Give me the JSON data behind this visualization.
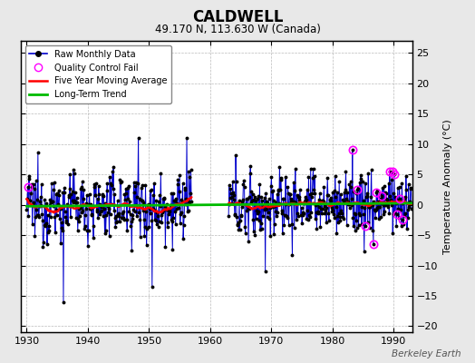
{
  "title": "CALDWELL",
  "subtitle": "49.170 N, 113.630 W (Canada)",
  "ylabel_right": "Temperature Anomaly (°C)",
  "xlim": [
    1929,
    1993
  ],
  "ylim": [
    -21,
    27
  ],
  "yticks": [
    -20,
    -15,
    -10,
    -5,
    0,
    5,
    10,
    15,
    20,
    25
  ],
  "xticks": [
    1930,
    1940,
    1950,
    1960,
    1970,
    1980,
    1990
  ],
  "background_color": "#e8e8e8",
  "plot_background": "#ffffff",
  "line_color": "#0000cc",
  "marker_color": "#000000",
  "qc_color": "#ff00ff",
  "moving_avg_color": "#ff0000",
  "trend_color": "#00bb00",
  "watermark": "Berkeley Earth",
  "seed": 12345,
  "start_year": 1930,
  "gap_start": 1957,
  "gap_end": 1963,
  "end_year": 1992
}
